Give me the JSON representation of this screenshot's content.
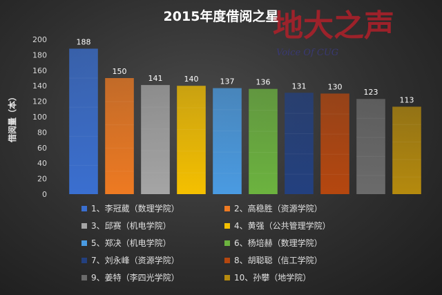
{
  "chart_data": {
    "type": "bar",
    "title": "2015年度借阅之星",
    "ylabel": "借阅量（本）",
    "xlabel": "",
    "ylim": [
      0,
      200
    ],
    "yticks": [
      0,
      20,
      40,
      60,
      80,
      100,
      120,
      140,
      160,
      180,
      200
    ],
    "grid": false,
    "legend_position": "bottom",
    "categories": [
      "1、李冠葳（数理学院）",
      "2、高稳胜（资源学院）",
      "3、邱赛（机电学院）",
      "4、黄强（公共管理学院）",
      "5、郑决（机电学院）",
      "6、杨培赫（数理学院）",
      "7、刘永峰（资源学院）",
      "8、胡聪聪（信工学院）",
      "9、姜特（李四光学院）",
      "10、孙攀（地学院）"
    ],
    "values": [
      188,
      150,
      141,
      140,
      137,
      136,
      131,
      130,
      123,
      113
    ],
    "colors": [
      "#3a6fd0",
      "#ee7a22",
      "#a5a5a5",
      "#f5c000",
      "#4a9be2",
      "#6cb33f",
      "#23407f",
      "#b5470f",
      "#6b6b6b",
      "#b58a0e"
    ]
  },
  "watermark": {
    "main_text": "地大之声",
    "sub_text": "Voice Of CUG",
    "color": "#b0202a"
  }
}
